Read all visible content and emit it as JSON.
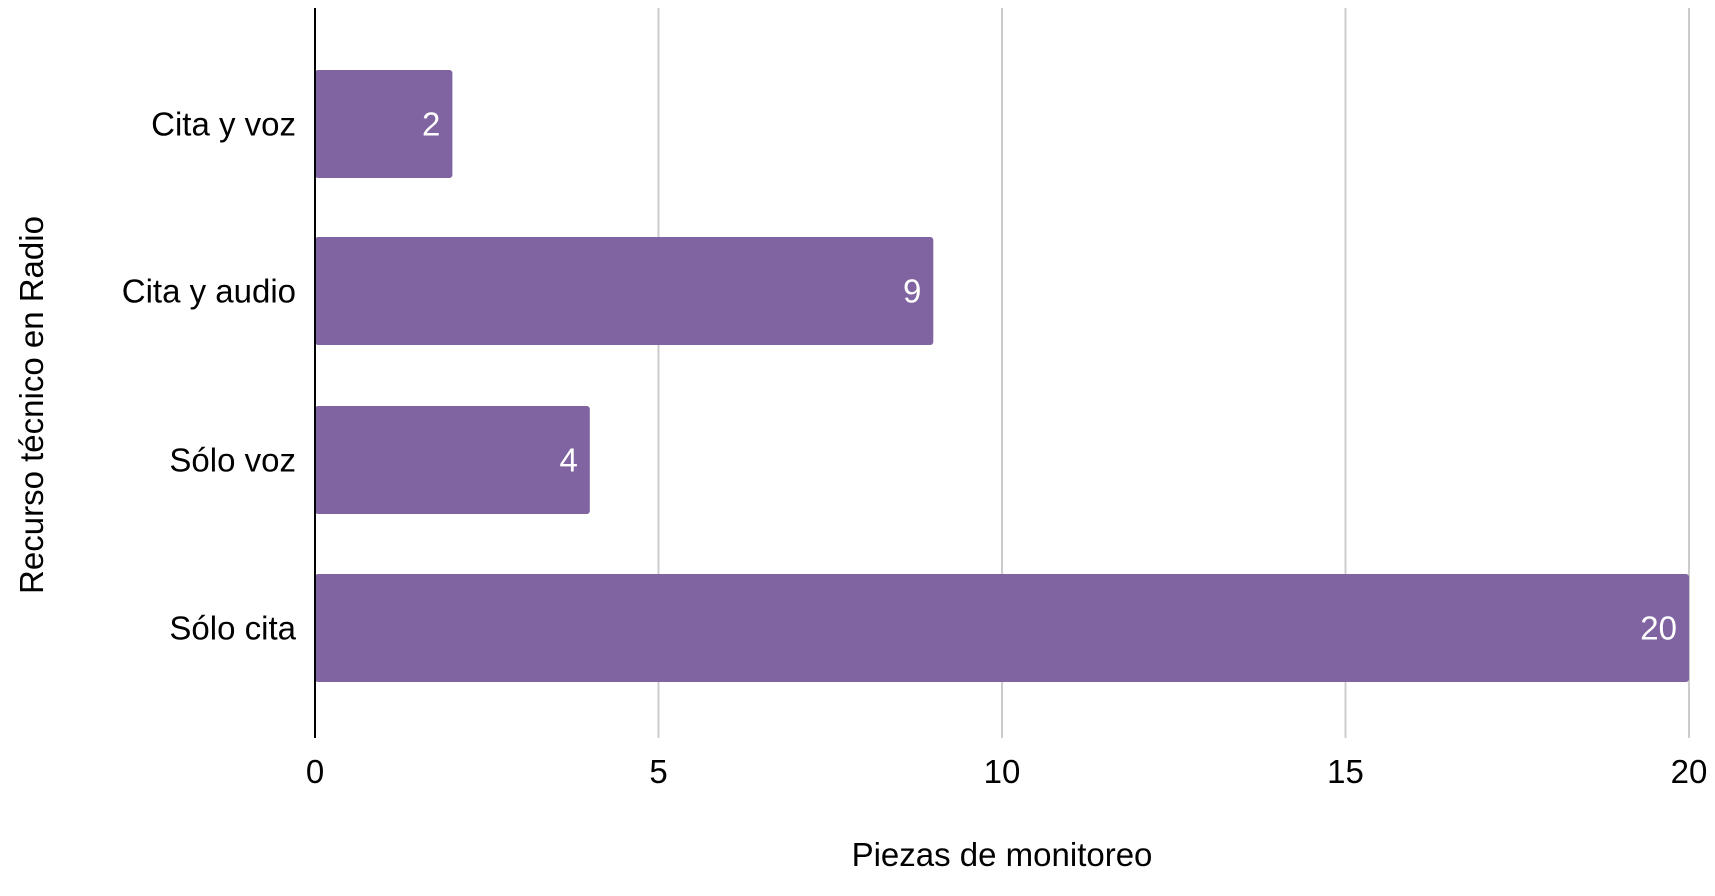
{
  "chart_data": {
    "type": "bar",
    "orientation": "horizontal",
    "categories": [
      "Cita y voz",
      "Cita y audio",
      "Sólo voz",
      "Sólo cita"
    ],
    "values": [
      2,
      9,
      4,
      20
    ],
    "data_labels": [
      "2",
      "9",
      "4",
      "20"
    ],
    "title": "",
    "xlabel": "Piezas de monitoreo",
    "ylabel": "Recurso técnico en Radio",
    "xlim": [
      0,
      20
    ],
    "xticks": [
      0,
      5,
      10,
      15,
      20
    ],
    "xtick_labels": [
      "0",
      "5",
      "10",
      "15",
      "20"
    ],
    "grid": "vertical",
    "legend": "none",
    "colors": {
      "bar": "#8064a2",
      "bar_label": "#ffffff",
      "grid": "#cccccc",
      "axis": "#000000",
      "text": "#000000"
    }
  }
}
